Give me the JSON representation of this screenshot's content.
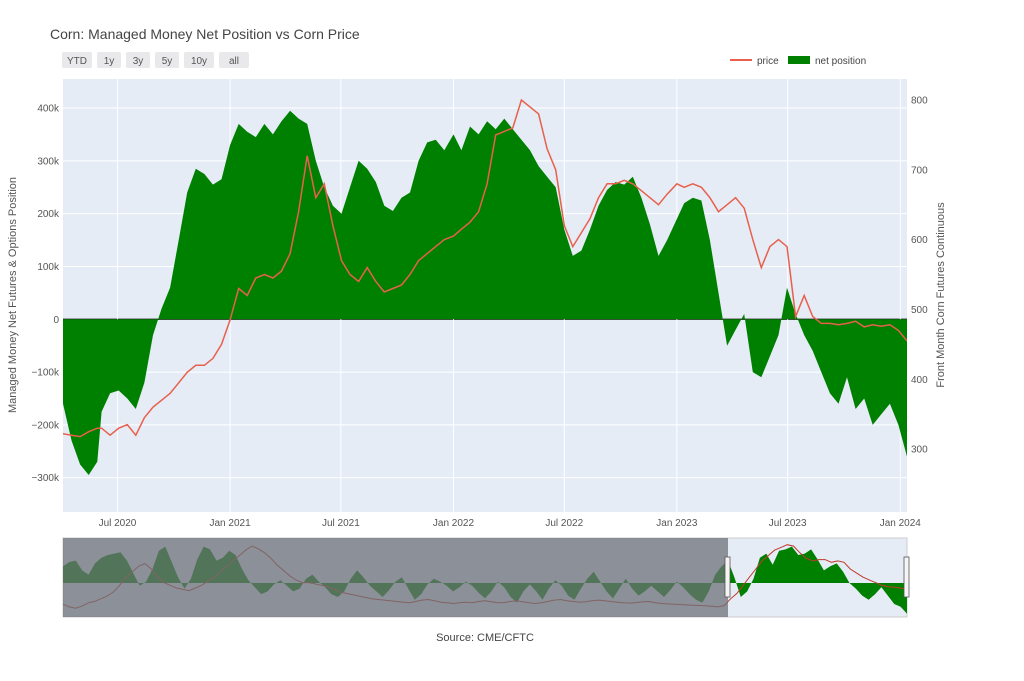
{
  "chart_data": {
    "type": "area",
    "title": "Corn: Managed Money Net Position vs Corn Price",
    "source": "Source: CME/CFTC",
    "range_buttons": [
      "YTD",
      "1y",
      "3y",
      "5y",
      "10y",
      "all"
    ],
    "legend": [
      {
        "name": "price",
        "color": "#e8604c",
        "kind": "line"
      },
      {
        "name": "net position",
        "color": "#008000",
        "kind": "area"
      }
    ],
    "legend_position": "top-right",
    "x_ticks": [
      "Jul 2020",
      "Jan 2021",
      "Jul 2021",
      "Jan 2022",
      "Jul 2022",
      "Jan 2023",
      "Jul 2023",
      "Jan 2024"
    ],
    "x_range": [
      "2020-04-03",
      "2024-01-12"
    ],
    "y_left": {
      "label": "Managed Money Net Futures & Options Position",
      "ticks": [
        "400k",
        "300k",
        "200k",
        "100k",
        "0",
        "−100k",
        "−200k",
        "−300k"
      ],
      "range": [
        -365000,
        455000
      ]
    },
    "y_right": {
      "label": "Front Month Corn Futures Continuous",
      "ticks": [
        "800",
        "700",
        "600",
        "500",
        "400",
        "300"
      ],
      "range": [
        210,
        830
      ]
    },
    "series": [
      {
        "name": "net position",
        "axis": "left",
        "color": "#008000",
        "points": [
          [
            "2020-04-03",
            -160000
          ],
          [
            "2020-04-17",
            -230000
          ],
          [
            "2020-05-01",
            -275000
          ],
          [
            "2020-05-15",
            -295000
          ],
          [
            "2020-05-29",
            -270000
          ],
          [
            "2020-06-05",
            -175000
          ],
          [
            "2020-06-19",
            -140000
          ],
          [
            "2020-07-03",
            -135000
          ],
          [
            "2020-07-17",
            -150000
          ],
          [
            "2020-07-31",
            -170000
          ],
          [
            "2020-08-14",
            -120000
          ],
          [
            "2020-08-28",
            -30000
          ],
          [
            "2020-09-11",
            20000
          ],
          [
            "2020-09-25",
            60000
          ],
          [
            "2020-10-09",
            150000
          ],
          [
            "2020-10-23",
            240000
          ],
          [
            "2020-11-06",
            285000
          ],
          [
            "2020-11-20",
            275000
          ],
          [
            "2020-12-04",
            255000
          ],
          [
            "2020-12-18",
            265000
          ],
          [
            "2021-01-01",
            330000
          ],
          [
            "2021-01-15",
            370000
          ],
          [
            "2021-01-29",
            355000
          ],
          [
            "2021-02-12",
            345000
          ],
          [
            "2021-02-26",
            370000
          ],
          [
            "2021-03-12",
            350000
          ],
          [
            "2021-03-26",
            375000
          ],
          [
            "2021-04-09",
            395000
          ],
          [
            "2021-04-23",
            380000
          ],
          [
            "2021-05-07",
            370000
          ],
          [
            "2021-05-21",
            300000
          ],
          [
            "2021-06-04",
            250000
          ],
          [
            "2021-06-18",
            215000
          ],
          [
            "2021-07-02",
            200000
          ],
          [
            "2021-07-16",
            250000
          ],
          [
            "2021-07-30",
            300000
          ],
          [
            "2021-08-13",
            285000
          ],
          [
            "2021-08-27",
            260000
          ],
          [
            "2021-09-10",
            215000
          ],
          [
            "2021-09-24",
            205000
          ],
          [
            "2021-10-08",
            230000
          ],
          [
            "2021-10-22",
            240000
          ],
          [
            "2021-11-05",
            300000
          ],
          [
            "2021-11-19",
            335000
          ],
          [
            "2021-12-03",
            340000
          ],
          [
            "2021-12-17",
            320000
          ],
          [
            "2022-01-01",
            350000
          ],
          [
            "2022-01-14",
            320000
          ],
          [
            "2022-01-28",
            365000
          ],
          [
            "2022-02-11",
            350000
          ],
          [
            "2022-02-25",
            375000
          ],
          [
            "2022-03-11",
            360000
          ],
          [
            "2022-03-25",
            380000
          ],
          [
            "2022-04-08",
            360000
          ],
          [
            "2022-04-22",
            340000
          ],
          [
            "2022-05-06",
            320000
          ],
          [
            "2022-05-20",
            290000
          ],
          [
            "2022-06-03",
            270000
          ],
          [
            "2022-06-17",
            250000
          ],
          [
            "2022-07-01",
            170000
          ],
          [
            "2022-07-15",
            120000
          ],
          [
            "2022-07-29",
            130000
          ],
          [
            "2022-08-12",
            170000
          ],
          [
            "2022-08-26",
            215000
          ],
          [
            "2022-09-09",
            245000
          ],
          [
            "2022-09-23",
            260000
          ],
          [
            "2022-10-07",
            255000
          ],
          [
            "2022-10-21",
            270000
          ],
          [
            "2022-11-04",
            230000
          ],
          [
            "2022-11-18",
            180000
          ],
          [
            "2022-12-02",
            120000
          ],
          [
            "2022-12-16",
            150000
          ],
          [
            "2023-01-01",
            190000
          ],
          [
            "2023-01-13",
            220000
          ],
          [
            "2023-01-27",
            230000
          ],
          [
            "2023-02-10",
            225000
          ],
          [
            "2023-02-24",
            150000
          ],
          [
            "2023-03-10",
            50000
          ],
          [
            "2023-03-24",
            -50000
          ],
          [
            "2023-04-07",
            -20000
          ],
          [
            "2023-04-21",
            10000
          ],
          [
            "2023-05-05",
            -100000
          ],
          [
            "2023-05-19",
            -110000
          ],
          [
            "2023-06-02",
            -70000
          ],
          [
            "2023-06-16",
            -30000
          ],
          [
            "2023-06-30",
            60000
          ],
          [
            "2023-07-14",
            10000
          ],
          [
            "2023-07-28",
            -30000
          ],
          [
            "2023-08-11",
            -60000
          ],
          [
            "2023-08-25",
            -100000
          ],
          [
            "2023-09-08",
            -140000
          ],
          [
            "2023-09-22",
            -160000
          ],
          [
            "2023-10-06",
            -110000
          ],
          [
            "2023-10-20",
            -170000
          ],
          [
            "2023-11-03",
            -150000
          ],
          [
            "2023-11-17",
            -200000
          ],
          [
            "2023-12-01",
            -180000
          ],
          [
            "2023-12-15",
            -160000
          ],
          [
            "2023-12-29",
            -200000
          ],
          [
            "2024-01-12",
            -260000
          ]
        ]
      },
      {
        "name": "price",
        "axis": "right",
        "color": "#e8604c",
        "points": [
          [
            "2020-04-03",
            322
          ],
          [
            "2020-04-17",
            320
          ],
          [
            "2020-05-01",
            318
          ],
          [
            "2020-05-15",
            325
          ],
          [
            "2020-05-29",
            330
          ],
          [
            "2020-06-05",
            330
          ],
          [
            "2020-06-19",
            320
          ],
          [
            "2020-07-03",
            330
          ],
          [
            "2020-07-17",
            335
          ],
          [
            "2020-07-31",
            320
          ],
          [
            "2020-08-14",
            345
          ],
          [
            "2020-08-28",
            360
          ],
          [
            "2020-09-11",
            370
          ],
          [
            "2020-09-25",
            380
          ],
          [
            "2020-10-09",
            395
          ],
          [
            "2020-10-23",
            410
          ],
          [
            "2020-11-06",
            420
          ],
          [
            "2020-11-20",
            420
          ],
          [
            "2020-12-04",
            430
          ],
          [
            "2020-12-18",
            450
          ],
          [
            "2021-01-01",
            485
          ],
          [
            "2021-01-15",
            530
          ],
          [
            "2021-01-29",
            520
          ],
          [
            "2021-02-12",
            545
          ],
          [
            "2021-02-26",
            550
          ],
          [
            "2021-03-12",
            545
          ],
          [
            "2021-03-26",
            555
          ],
          [
            "2021-04-09",
            580
          ],
          [
            "2021-04-23",
            640
          ],
          [
            "2021-05-07",
            720
          ],
          [
            "2021-05-21",
            660
          ],
          [
            "2021-06-04",
            680
          ],
          [
            "2021-06-18",
            620
          ],
          [
            "2021-07-02",
            570
          ],
          [
            "2021-07-16",
            550
          ],
          [
            "2021-07-30",
            540
          ],
          [
            "2021-08-13",
            560
          ],
          [
            "2021-08-27",
            540
          ],
          [
            "2021-09-10",
            525
          ],
          [
            "2021-09-24",
            530
          ],
          [
            "2021-10-08",
            535
          ],
          [
            "2021-10-22",
            550
          ],
          [
            "2021-11-05",
            570
          ],
          [
            "2021-11-19",
            580
          ],
          [
            "2021-12-03",
            590
          ],
          [
            "2021-12-17",
            600
          ],
          [
            "2022-01-01",
            605
          ],
          [
            "2022-01-14",
            615
          ],
          [
            "2022-01-28",
            625
          ],
          [
            "2022-02-11",
            640
          ],
          [
            "2022-02-25",
            680
          ],
          [
            "2022-03-11",
            750
          ],
          [
            "2022-03-25",
            755
          ],
          [
            "2022-04-08",
            760
          ],
          [
            "2022-04-22",
            800
          ],
          [
            "2022-05-06",
            790
          ],
          [
            "2022-05-20",
            780
          ],
          [
            "2022-06-03",
            730
          ],
          [
            "2022-06-17",
            700
          ],
          [
            "2022-07-01",
            620
          ],
          [
            "2022-07-15",
            590
          ],
          [
            "2022-07-29",
            610
          ],
          [
            "2022-08-12",
            630
          ],
          [
            "2022-08-26",
            660
          ],
          [
            "2022-09-09",
            680
          ],
          [
            "2022-09-23",
            680
          ],
          [
            "2022-10-07",
            685
          ],
          [
            "2022-10-21",
            680
          ],
          [
            "2022-11-04",
            670
          ],
          [
            "2022-11-18",
            660
          ],
          [
            "2022-12-02",
            650
          ],
          [
            "2022-12-16",
            665
          ],
          [
            "2023-01-01",
            680
          ],
          [
            "2023-01-13",
            675
          ],
          [
            "2023-01-27",
            680
          ],
          [
            "2023-02-10",
            675
          ],
          [
            "2023-02-24",
            660
          ],
          [
            "2023-03-10",
            640
          ],
          [
            "2023-03-24",
            650
          ],
          [
            "2023-04-07",
            660
          ],
          [
            "2023-04-21",
            645
          ],
          [
            "2023-05-05",
            600
          ],
          [
            "2023-05-19",
            560
          ],
          [
            "2023-06-02",
            590
          ],
          [
            "2023-06-16",
            600
          ],
          [
            "2023-06-30",
            590
          ],
          [
            "2023-07-14",
            490
          ],
          [
            "2023-07-28",
            520
          ],
          [
            "2023-08-11",
            490
          ],
          [
            "2023-08-25",
            480
          ],
          [
            "2023-09-08",
            480
          ],
          [
            "2023-09-22",
            478
          ],
          [
            "2023-10-06",
            480
          ],
          [
            "2023-10-20",
            483
          ],
          [
            "2023-11-03",
            475
          ],
          [
            "2023-11-17",
            478
          ],
          [
            "2023-12-01",
            476
          ],
          [
            "2023-12-15",
            478
          ],
          [
            "2023-12-29",
            470
          ],
          [
            "2024-01-12",
            455
          ]
        ]
      }
    ],
    "range_slider": {
      "selected": [
        "2020-04-03",
        "2024-01-12"
      ],
      "positive_color": "#008000",
      "negative_color": "#008000",
      "price_color": "#c0392b",
      "history": {
        "net_position": [
          120000,
          150000,
          160000,
          90000,
          60000,
          140000,
          180000,
          200000,
          210000,
          220000,
          160000,
          70000,
          -20000,
          10000,
          100000,
          230000,
          260000,
          150000,
          40000,
          -40000,
          30000,
          170000,
          260000,
          240000,
          160000,
          180000,
          230000,
          200000,
          100000,
          20000,
          -30000,
          -80000,
          -60000,
          -10000,
          20000,
          -20000,
          -60000,
          -40000,
          30000,
          60000,
          10000,
          -30000,
          -80000,
          -100000,
          -60000,
          30000,
          90000,
          40000,
          -20000,
          -60000,
          -100000,
          -50000,
          10000,
          40000,
          -40000,
          -120000,
          -80000,
          -10000,
          30000,
          10000,
          -20000,
          -60000,
          -30000,
          10000,
          -20000,
          -70000,
          -110000,
          -60000,
          10000,
          -30000,
          -100000,
          -140000,
          -60000,
          -10000,
          -60000,
          -120000,
          -40000,
          20000,
          -20000,
          -90000,
          -120000,
          -40000,
          30000,
          80000,
          10000,
          -60000,
          -110000,
          -40000,
          30000,
          -40000,
          -90000,
          -60000,
          -20000,
          -60000,
          -100000,
          -50000,
          10000,
          -30000,
          -80000,
          -120000,
          -140000,
          -60000,
          60000,
          120000,
          160000,
          40000,
          -100000,
          -60000,
          30000,
          180000,
          210000,
          130000,
          230000,
          240000,
          260000,
          200000,
          210000,
          240000,
          170000,
          90000,
          120000,
          140000,
          80000,
          0,
          -40000,
          -90000,
          -120000,
          -80000,
          -30000,
          -90000,
          -150000,
          -170000,
          -220000
        ],
        "price": [
          360,
          340,
          330,
          345,
          370,
          380,
          400,
          420,
          450,
          500,
          560,
          600,
          640,
          660,
          620,
          560,
          520,
          500,
          480,
          470,
          460,
          480,
          500,
          530,
          560,
          600,
          640,
          680,
          720,
          760,
          790,
          770,
          740,
          700,
          650,
          610,
          570,
          540,
          520,
          520,
          510,
          500,
          490,
          470,
          450,
          440,
          430,
          420,
          410,
          400,
          395,
          390,
          385,
          380,
          375,
          370,
          380,
          390,
          395,
          385,
          375,
          370,
          365,
          370,
          375,
          370,
          380,
          385,
          378,
          370,
          372,
          380,
          385,
          378,
          370,
          365,
          372,
          380,
          390,
          395,
          385,
          380,
          375,
          378,
          385,
          390,
          385,
          380,
          374,
          370,
          368,
          372,
          378,
          380,
          372,
          365,
          362,
          360,
          358,
          355,
          352,
          350,
          348,
          345,
          340,
          350,
          400,
          440,
          500,
          560,
          620,
          680,
          720,
          760,
          780,
          800,
          790,
          740,
          700,
          680,
          690,
          690,
          670,
          680,
          670,
          620,
          590,
          560,
          540,
          520,
          500,
          490,
          485,
          480,
          470
        ]
      }
    }
  }
}
